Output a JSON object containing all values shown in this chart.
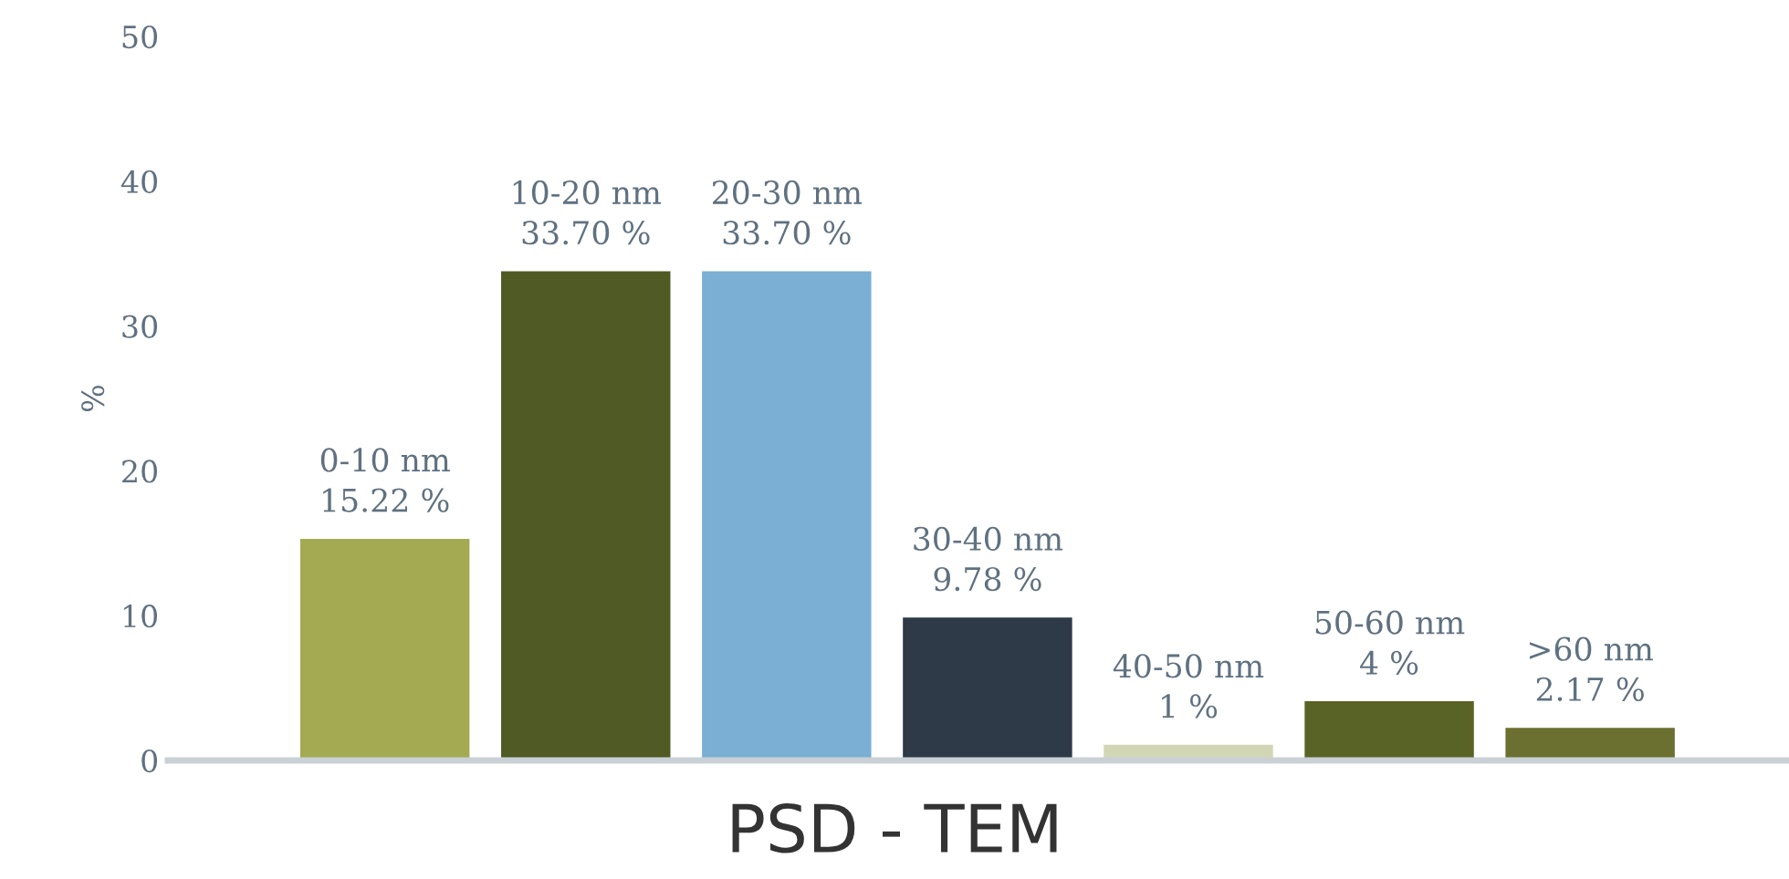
{
  "chart_data": {
    "type": "bar",
    "title": "PSD - TEM",
    "ylabel": "%",
    "categories": [
      "0-10 nm",
      "10-20 nm",
      "20-30 nm",
      "30-40 nm",
      "40-50 nm",
      "50-60 nm",
      ">60 nm"
    ],
    "values": [
      15.22,
      33.7,
      33.7,
      9.78,
      1,
      4,
      2.17
    ],
    "value_labels": [
      "15.22 %",
      "33.70 %",
      "33.70 %",
      "9.78 %",
      "1 %",
      "4 %",
      "2.17 %"
    ],
    "colors": [
      "#a3aa52",
      "#4f5a24",
      "#7bafd4",
      "#2e3a48",
      "#d3d6b4",
      "#5a6326",
      "#6b7030"
    ],
    "ylim": [
      0,
      50
    ],
    "yticks": [
      0,
      10,
      20,
      30,
      40,
      50
    ],
    "grid": false,
    "legend": false
  }
}
